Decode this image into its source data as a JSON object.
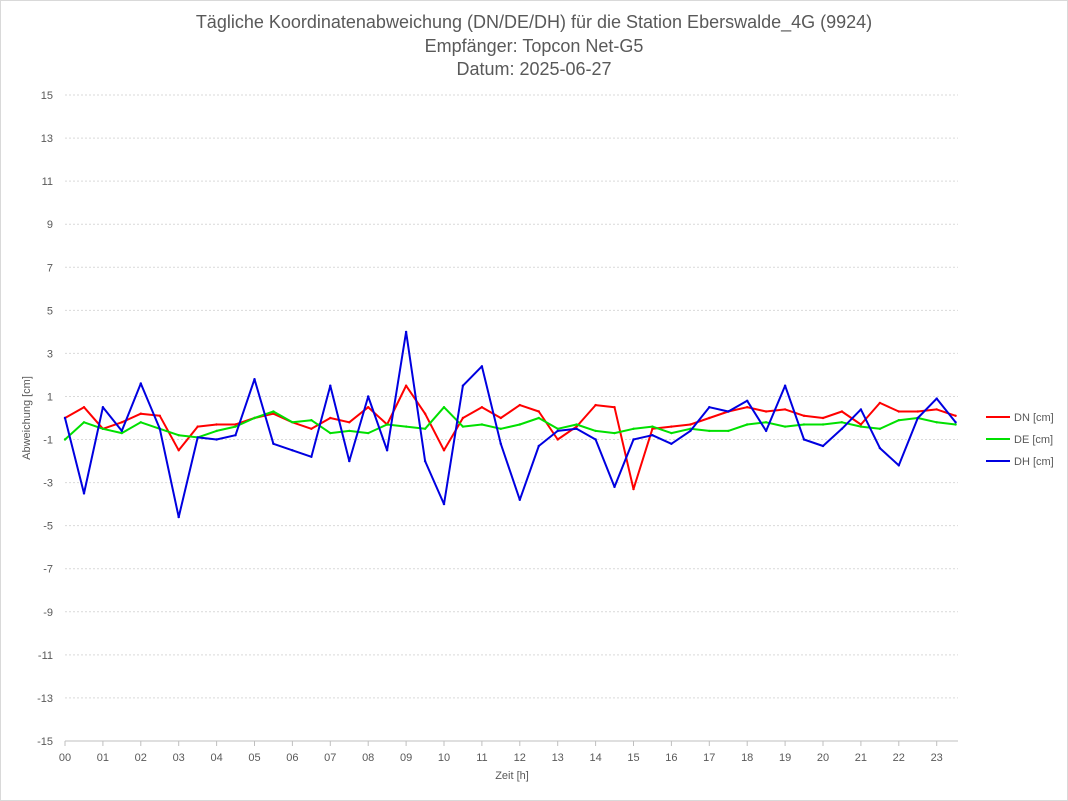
{
  "chart_data": {
    "type": "line",
    "title": "Tägliche Koordinatenabweichung (DN/DE/DH) für die Station Eberswalde_4G (9924)",
    "subtitle": "Empfänger: Topcon Net-G5",
    "date_line": "Datum: 2025-06-27",
    "xlabel": "Zeit [h]",
    "ylabel": "Abweichung [cm]",
    "xlim": [
      0,
      24
    ],
    "ylim": [
      -15,
      15
    ],
    "x_ticks": [
      "00",
      "01",
      "02",
      "03",
      "04",
      "05",
      "06",
      "07",
      "08",
      "09",
      "10",
      "11",
      "12",
      "13",
      "14",
      "15",
      "16",
      "17",
      "18",
      "19",
      "20",
      "21",
      "22",
      "23"
    ],
    "y_ticks": [
      15,
      13,
      11,
      9,
      7,
      5,
      3,
      1,
      -1,
      -3,
      -5,
      -7,
      -9,
      -11,
      -13,
      -15
    ],
    "grid": true,
    "legend_position": "right",
    "sample_x_hours": [
      0,
      0.5,
      1,
      1.5,
      2,
      2.5,
      3,
      3.5,
      4,
      4.5,
      5,
      5.5,
      6,
      6.5,
      7,
      7.5,
      8,
      8.5,
      9,
      9.5,
      10,
      10.5,
      11,
      11.5,
      12,
      12.5,
      13,
      13.5,
      14,
      14.5,
      15,
      15.5,
      16,
      16.5,
      17,
      17.5,
      18,
      18.5,
      19,
      19.5,
      20,
      20.5,
      21,
      21.5,
      22,
      22.5,
      23,
      23.5
    ],
    "series": [
      {
        "name": "DN [cm]",
        "color": "#ff0000",
        "values": [
          0.0,
          0.5,
          -0.5,
          -0.2,
          0.2,
          0.1,
          -1.5,
          -0.4,
          -0.3,
          -0.3,
          0.0,
          0.2,
          -0.2,
          -0.5,
          0.0,
          -0.2,
          0.5,
          -0.3,
          1.5,
          0.2,
          -1.5,
          0.0,
          0.5,
          0.0,
          0.6,
          0.3,
          -1.0,
          -0.4,
          0.6,
          0.5,
          -3.3,
          -0.5,
          -0.4,
          -0.3,
          0.0,
          0.3,
          0.5,
          0.3,
          0.4,
          0.1,
          0.0,
          0.3,
          -0.3,
          0.7,
          0.3,
          0.3,
          0.4,
          0.1
        ]
      },
      {
        "name": "DE [cm]",
        "color": "#00e000",
        "values": [
          -1.0,
          -0.2,
          -0.5,
          -0.7,
          -0.2,
          -0.5,
          -0.8,
          -0.9,
          -0.6,
          -0.4,
          0.0,
          0.3,
          -0.2,
          -0.1,
          -0.7,
          -0.6,
          -0.7,
          -0.3,
          -0.4,
          -0.5,
          0.5,
          -0.4,
          -0.3,
          -0.5,
          -0.3,
          0.0,
          -0.5,
          -0.3,
          -0.6,
          -0.7,
          -0.5,
          -0.4,
          -0.7,
          -0.5,
          -0.6,
          -0.6,
          -0.3,
          -0.2,
          -0.4,
          -0.3,
          -0.3,
          -0.2,
          -0.4,
          -0.5,
          -0.1,
          0.0,
          -0.2,
          -0.3
        ]
      },
      {
        "name": "DH [cm]",
        "color": "#0000e0",
        "values": [
          0.0,
          -3.5,
          0.5,
          -0.6,
          1.6,
          -0.5,
          -4.6,
          -0.9,
          -1.0,
          -0.8,
          1.8,
          -1.2,
          -1.5,
          -1.8,
          1.5,
          -2.0,
          1.0,
          -1.5,
          4.0,
          -2.0,
          -4.0,
          1.5,
          2.4,
          -1.2,
          -3.8,
          -1.3,
          -0.6,
          -0.5,
          -1.0,
          -3.2,
          -1.0,
          -0.8,
          -1.2,
          -0.6,
          0.5,
          0.3,
          0.8,
          -0.6,
          1.5,
          -1.0,
          -1.3,
          -0.5,
          0.4,
          -1.4,
          -2.2,
          0.0,
          0.9,
          -0.2
        ]
      }
    ]
  }
}
